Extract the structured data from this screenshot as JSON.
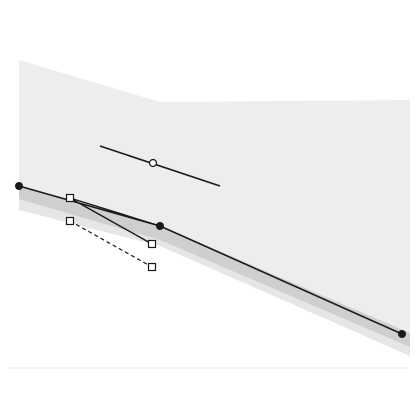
{
  "canvas": {
    "background": "#ffffff",
    "gradient_icon": "linear-gradient-handle-icon"
  },
  "colors": {
    "fill_light": "#ededed",
    "stroke_band": "#cfcfcf",
    "stroke_band_light": "#e6e6e6",
    "path_line": "#1a1a1a",
    "handle_fill": "#ffffff",
    "separator": "#e8e8e8"
  }
}
